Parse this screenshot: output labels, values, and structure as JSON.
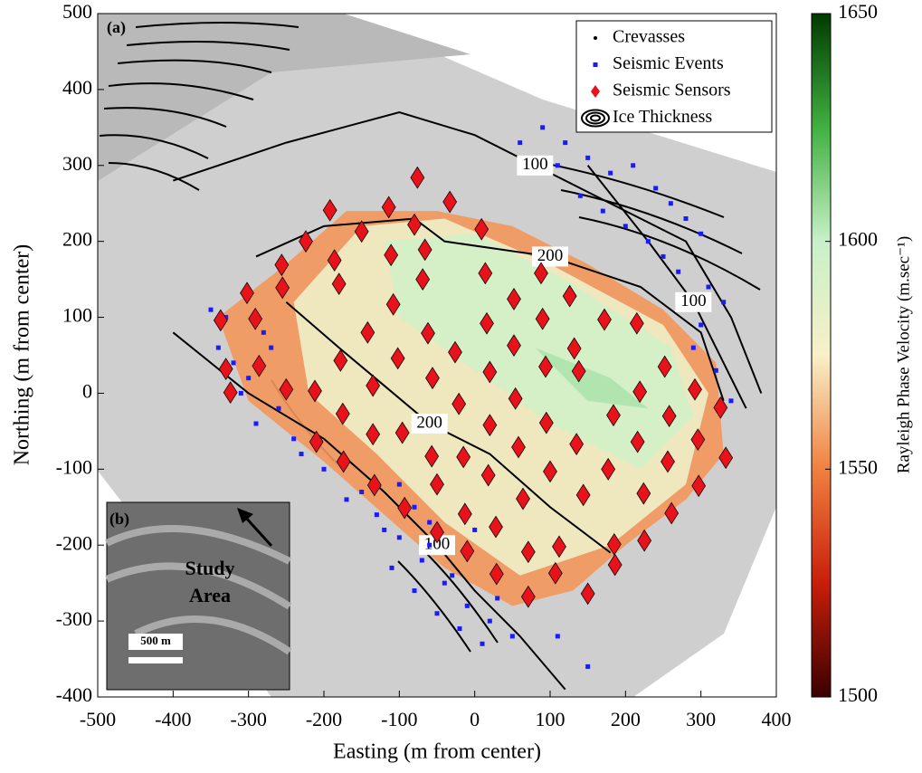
{
  "chart_data": {
    "type": "map_scatter",
    "panel_label": "(a)",
    "xlabel": "Easting (m from center)",
    "ylabel": "Northing (m from center)",
    "xlim": [
      -500,
      400
    ],
    "ylim": [
      -400,
      500
    ],
    "xticks": [
      -500,
      -400,
      -300,
      -200,
      -100,
      0,
      100,
      200,
      300,
      400
    ],
    "yticks": [
      -400,
      -300,
      -200,
      -100,
      0,
      100,
      200,
      300,
      400,
      500
    ],
    "colorbar_label": "Rayleigh Phase Velocity (m.sec⁻¹)",
    "clim": [
      1500,
      1650
    ],
    "cticks": [
      1500,
      1550,
      1600,
      1650
    ],
    "colormap": [
      "#3a0000",
      "#c81e0a",
      "#f08040",
      "#f8f0c8",
      "#c8f0c8",
      "#40b040",
      "#003a00"
    ],
    "legend_position": "northeast",
    "legend": [
      "Crevasses",
      "Seismic Events",
      "Seismic Sensors",
      "Ice Thickness"
    ],
    "velocity_zones": [
      {
        "value": 1555,
        "x": [
          -340,
          -250,
          -170,
          -50,
          50,
          150,
          250,
          320,
          330,
          280,
          200,
          130,
          50,
          -40,
          -120,
          -200,
          -300
        ],
        "y": [
          100,
          170,
          240,
          240,
          220,
          170,
          110,
          40,
          -80,
          -140,
          -200,
          -260,
          -280,
          -230,
          -160,
          -90,
          -10
        ]
      },
      {
        "value": 1580,
        "x": [
          -240,
          -150,
          -40,
          100,
          250,
          310,
          280,
          180,
          60,
          -40,
          -130,
          -220
        ],
        "y": [
          120,
          220,
          230,
          170,
          90,
          0,
          -120,
          -200,
          -240,
          -170,
          -80,
          0
        ]
      },
      {
        "value": 1595,
        "x": [
          -120,
          0,
          120,
          260,
          290,
          220,
          100,
          0,
          -100
        ],
        "y": [
          200,
          210,
          150,
          60,
          -30,
          -100,
          -40,
          30,
          100
        ]
      },
      {
        "value": 1605,
        "x": [
          80,
          180,
          230,
          150
        ],
        "y": [
          60,
          20,
          -20,
          -10
        ]
      }
    ],
    "contours": [
      {
        "level": 100,
        "x": [
          -400,
          -250,
          -100,
          0,
          80,
          180,
          280,
          340,
          380
        ],
        "y": [
          280,
          330,
          370,
          340,
          300,
          250,
          200,
          100,
          0
        ]
      },
      {
        "level": 200,
        "x": [
          -290,
          -200,
          -80,
          -40,
          100,
          220,
          300,
          330
        ],
        "y": [
          180,
          220,
          230,
          200,
          180,
          140,
          80,
          -10
        ]
      },
      {
        "level": 100,
        "x": [
          150,
          230,
          290,
          320,
          360
        ],
        "y": [
          300,
          200,
          120,
          60,
          -20
        ]
      },
      {
        "level": 200,
        "x": [
          -250,
          -180,
          -120,
          -60,
          20,
          100,
          180
        ],
        "y": [
          120,
          60,
          10,
          -40,
          -80,
          -150,
          -210
        ]
      },
      {
        "level": 100,
        "x": [
          -400,
          -300,
          -200,
          -120,
          -50,
          0,
          60,
          120
        ],
        "y": [
          80,
          0,
          -60,
          -130,
          -200,
          -260,
          -320,
          -390
        ]
      }
    ],
    "events": {
      "name": "Seismic Events",
      "color": "#1a1aff",
      "x": [
        120,
        150,
        180,
        210,
        240,
        260,
        280,
        300,
        140,
        170,
        200,
        230,
        90,
        110,
        60,
        250,
        270,
        310,
        330,
        290,
        320,
        340,
        300,
        -340,
        -320,
        -300,
        -280,
        -260,
        -330,
        -310,
        -290,
        -270,
        -350,
        -240,
        -130,
        -100,
        -70,
        -40,
        -10,
        20,
        50,
        -110,
        -80,
        -50,
        -20,
        10,
        -60,
        -30,
        0,
        30,
        -150,
        -120,
        -200,
        -170,
        -230,
        -100,
        -80,
        -60,
        110,
        150
      ],
      "y": [
        330,
        310,
        290,
        300,
        270,
        250,
        230,
        210,
        260,
        240,
        220,
        200,
        350,
        300,
        330,
        180,
        160,
        140,
        120,
        60,
        30,
        -10,
        90,
        60,
        40,
        20,
        80,
        -20,
        100,
        0,
        -40,
        60,
        110,
        -60,
        -160,
        -190,
        -220,
        -250,
        -280,
        -300,
        -320,
        -230,
        -260,
        -290,
        -310,
        -330,
        -200,
        -240,
        -180,
        -270,
        -130,
        -180,
        -100,
        -140,
        -80,
        -120,
        -150,
        -170,
        -320,
        -360
      ]
    },
    "sensors": {
      "name": "Seismic Sensors",
      "color": "#e8121b",
      "x": [
        -76,
        -33,
        -192,
        -114,
        9,
        -80,
        -224,
        -150,
        -66,
        -256,
        -186,
        -111,
        14,
        88,
        126,
        -302,
        -255,
        -180,
        -69,
        -108,
        16,
        52,
        -337,
        -291,
        -142,
        -62,
        90,
        172,
        132,
        215,
        52,
        -26,
        -102,
        94,
        138,
        252,
        -286,
        -330,
        -178,
        20,
        -324,
        -250,
        -135,
        54,
        -56,
        -21,
        219,
        292,
        95,
        184,
        258,
        -175,
        -212,
        -96,
        20,
        326,
        -135,
        -210,
        -57,
        -15,
        58,
        135,
        216,
        296,
        -174,
        -133,
        -50,
        18,
        100,
        177,
        256,
        333,
        -93,
        -13,
        28,
        64,
        144,
        224,
        297,
        -50,
        -10,
        71,
        112,
        185,
        261,
        29,
        71,
        107,
        150,
        225,
        186
      ],
      "y": [
        284,
        252,
        241,
        245,
        216,
        222,
        200,
        213,
        189,
        169,
        175,
        182,
        158,
        158,
        128,
        132,
        139,
        144,
        150,
        117,
        92,
        124,
        96,
        98,
        80,
        79,
        98,
        97,
        59,
        92,
        63,
        54,
        46,
        35,
        29,
        35,
        36,
        32,
        43,
        28,
        1,
        5,
        10,
        -7,
        20,
        -14,
        2,
        5,
        -39,
        -29,
        -30,
        -27,
        3,
        -52,
        -42,
        -19,
        -54,
        -64,
        -83,
        -84,
        -71,
        -67,
        -64,
        -61,
        -90,
        -121,
        -120,
        -108,
        -103,
        -100,
        -90,
        -85,
        -151,
        -159,
        -176,
        -139,
        -134,
        -132,
        -122,
        -183,
        -208,
        -209,
        -202,
        -199,
        -158,
        -238,
        -268,
        -237,
        -264,
        -194,
        -226
      ]
    },
    "inset": {
      "panel_label": "(b)",
      "label_lines": [
        "Study",
        "Area"
      ],
      "scale_label": "500 m"
    }
  }
}
